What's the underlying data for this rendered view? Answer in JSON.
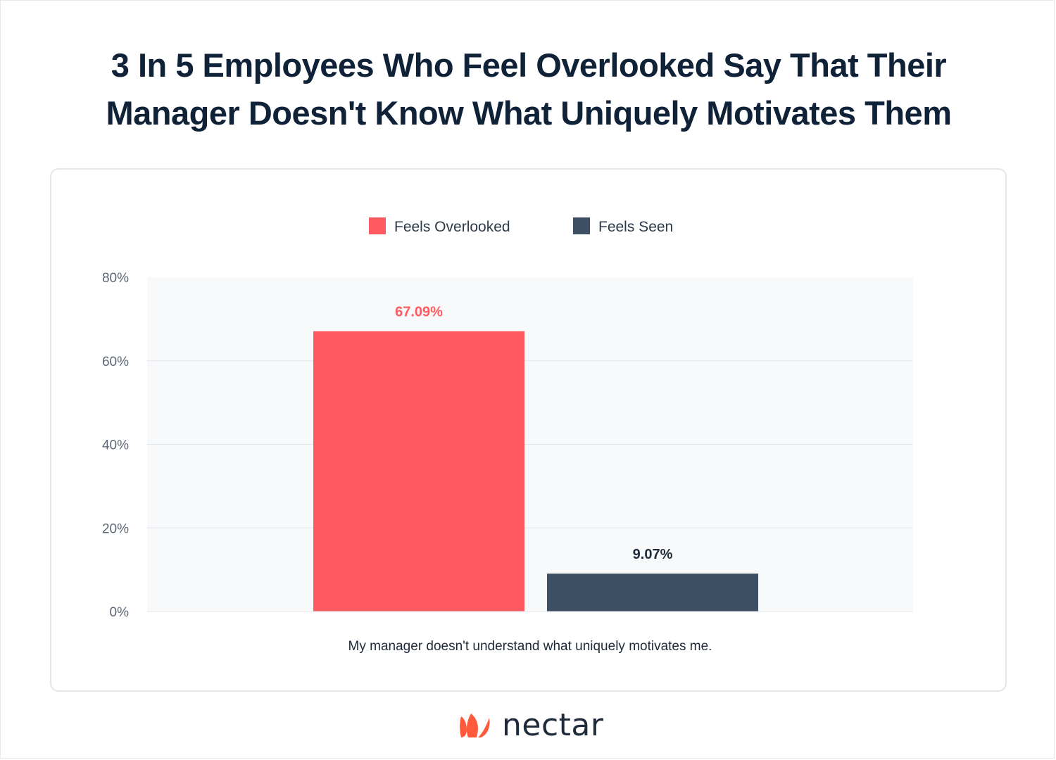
{
  "title_lines": [
    "3 In 5 Employees Who Feel Overlooked Say That Their",
    "Manager Doesn't Know What Uniquely Motivates Them"
  ],
  "colors": {
    "overlooked": "#ff5a5f",
    "seen": "#3d4f63",
    "plot_bg": "#f8f9fb",
    "grid": "#e3e6ea",
    "tick_text": "#5b6776"
  },
  "brand": {
    "name": "nectar",
    "mark_icon": "nectar-flame-logo-icon",
    "color": "#ff5a3c"
  },
  "chart_data": {
    "type": "bar",
    "categories": [
      "My manager doesn't understand what uniquely motivates me."
    ],
    "series": [
      {
        "name": "Feels Overlooked",
        "values": [
          67.09
        ],
        "label": "67.09%"
      },
      {
        "name": "Feels Seen",
        "values": [
          9.07
        ],
        "label": "9.07%"
      }
    ],
    "ylim": [
      0,
      80
    ],
    "yticks": [
      0,
      20,
      40,
      60,
      80
    ],
    "ytick_labels": [
      "0%",
      "20%",
      "40%",
      "60%",
      "80%"
    ],
    "legend_position": "top-center",
    "grid": true
  }
}
